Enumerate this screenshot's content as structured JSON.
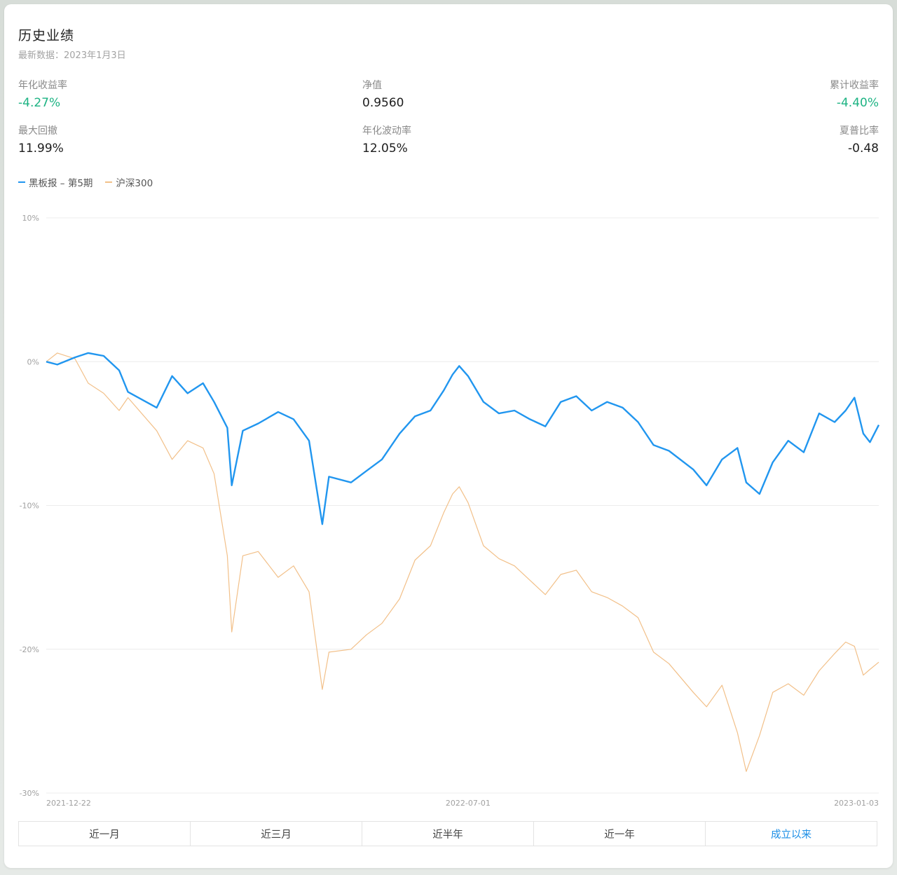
{
  "header": {
    "title": "历史业绩",
    "subtitle": "最新数据：2023年1月3日"
  },
  "metrics": [
    {
      "label": "年化收益率",
      "value": "-4.27%",
      "color": "#1db383"
    },
    {
      "label": "净值",
      "value": "0.9560",
      "color": "#1d1d1d"
    },
    {
      "label": "累计收益率",
      "value": "-4.40%",
      "color": "#1db383"
    },
    {
      "label": "最大回撤",
      "value": "11.99%",
      "color": "#1d1d1d"
    },
    {
      "label": "年化波动率",
      "value": "12.05%",
      "color": "#1d1d1d"
    },
    {
      "label": "夏普比率",
      "value": "-0.48",
      "color": "#1d1d1d"
    }
  ],
  "tabs": {
    "items": [
      "近一月",
      "近三月",
      "近半年",
      "近一年",
      "成立以来"
    ],
    "active_index": 4,
    "active_color": "#1d8fe6"
  },
  "chart_data": {
    "type": "line",
    "x_start": "2021-12-22",
    "x_end": "2023-01-03",
    "xticks": [
      "2021-12-22",
      "2022-07-01",
      "2023-01-03"
    ],
    "yticks": [
      "10%",
      "0%",
      "-10%",
      "-20%",
      "-30%"
    ],
    "ylim": [
      -30,
      10
    ],
    "grid": true,
    "legend_position": "top-left",
    "series": [
      {
        "name": "黑板报 – 第5期",
        "color": "#2196ef",
        "points": [
          [
            "2021-12-22",
            0.0
          ],
          [
            "2021-12-27",
            -0.2
          ],
          [
            "2022-01-04",
            0.3
          ],
          [
            "2022-01-10",
            0.6
          ],
          [
            "2022-01-17",
            0.4
          ],
          [
            "2022-01-24",
            -0.6
          ],
          [
            "2022-01-28",
            -2.1
          ],
          [
            "2022-02-10",
            -3.2
          ],
          [
            "2022-02-17",
            -1.0
          ],
          [
            "2022-02-24",
            -2.2
          ],
          [
            "2022-03-03",
            -1.5
          ],
          [
            "2022-03-08",
            -2.8
          ],
          [
            "2022-03-14",
            -4.6
          ],
          [
            "2022-03-16",
            -8.6
          ],
          [
            "2022-03-21",
            -4.8
          ],
          [
            "2022-03-28",
            -4.3
          ],
          [
            "2022-04-06",
            -3.5
          ],
          [
            "2022-04-13",
            -4.0
          ],
          [
            "2022-04-20",
            -5.5
          ],
          [
            "2022-04-26",
            -11.3
          ],
          [
            "2022-04-29",
            -8.0
          ],
          [
            "2022-05-09",
            -8.4
          ],
          [
            "2022-05-16",
            -7.6
          ],
          [
            "2022-05-23",
            -6.8
          ],
          [
            "2022-05-31",
            -5.0
          ],
          [
            "2022-06-07",
            -3.8
          ],
          [
            "2022-06-14",
            -3.4
          ],
          [
            "2022-06-20",
            -2.0
          ],
          [
            "2022-06-24",
            -0.9
          ],
          [
            "2022-06-27",
            -0.3
          ],
          [
            "2022-07-01",
            -1.0
          ],
          [
            "2022-07-08",
            -2.8
          ],
          [
            "2022-07-15",
            -3.6
          ],
          [
            "2022-07-22",
            -3.4
          ],
          [
            "2022-07-29",
            -4.0
          ],
          [
            "2022-08-05",
            -4.5
          ],
          [
            "2022-08-12",
            -2.8
          ],
          [
            "2022-08-19",
            -2.4
          ],
          [
            "2022-08-26",
            -3.4
          ],
          [
            "2022-09-02",
            -2.8
          ],
          [
            "2022-09-09",
            -3.2
          ],
          [
            "2022-09-16",
            -4.2
          ],
          [
            "2022-09-23",
            -5.8
          ],
          [
            "2022-09-30",
            -6.2
          ],
          [
            "2022-10-11",
            -7.5
          ],
          [
            "2022-10-17",
            -8.6
          ],
          [
            "2022-10-24",
            -6.8
          ],
          [
            "2022-10-31",
            -6.0
          ],
          [
            "2022-11-04",
            -8.4
          ],
          [
            "2022-11-10",
            -9.2
          ],
          [
            "2022-11-16",
            -7.0
          ],
          [
            "2022-11-23",
            -5.5
          ],
          [
            "2022-11-30",
            -6.3
          ],
          [
            "2022-12-07",
            -3.6
          ],
          [
            "2022-12-14",
            -4.2
          ],
          [
            "2022-12-19",
            -3.4
          ],
          [
            "2022-12-23",
            -2.5
          ],
          [
            "2022-12-27",
            -5.0
          ],
          [
            "2022-12-30",
            -5.6
          ],
          [
            "2023-01-03",
            -4.4
          ]
        ]
      },
      {
        "name": "沪深300",
        "color": "#f2c089",
        "points": [
          [
            "2021-12-22",
            0.0
          ],
          [
            "2021-12-27",
            0.6
          ],
          [
            "2022-01-04",
            0.2
          ],
          [
            "2022-01-10",
            -1.5
          ],
          [
            "2022-01-17",
            -2.2
          ],
          [
            "2022-01-24",
            -3.4
          ],
          [
            "2022-01-28",
            -2.5
          ],
          [
            "2022-02-10",
            -4.8
          ],
          [
            "2022-02-17",
            -6.8
          ],
          [
            "2022-02-24",
            -5.5
          ],
          [
            "2022-03-03",
            -6.0
          ],
          [
            "2022-03-08",
            -7.8
          ],
          [
            "2022-03-14",
            -13.5
          ],
          [
            "2022-03-16",
            -18.8
          ],
          [
            "2022-03-21",
            -13.5
          ],
          [
            "2022-03-28",
            -13.2
          ],
          [
            "2022-04-06",
            -15.0
          ],
          [
            "2022-04-13",
            -14.2
          ],
          [
            "2022-04-20",
            -16.0
          ],
          [
            "2022-04-26",
            -22.8
          ],
          [
            "2022-04-29",
            -20.2
          ],
          [
            "2022-05-09",
            -20.0
          ],
          [
            "2022-05-16",
            -19.0
          ],
          [
            "2022-05-23",
            -18.2
          ],
          [
            "2022-05-31",
            -16.5
          ],
          [
            "2022-06-07",
            -13.8
          ],
          [
            "2022-06-14",
            -12.8
          ],
          [
            "2022-06-20",
            -10.5
          ],
          [
            "2022-06-24",
            -9.2
          ],
          [
            "2022-06-27",
            -8.7
          ],
          [
            "2022-07-01",
            -9.8
          ],
          [
            "2022-07-08",
            -12.8
          ],
          [
            "2022-07-15",
            -13.7
          ],
          [
            "2022-07-22",
            -14.2
          ],
          [
            "2022-07-29",
            -15.2
          ],
          [
            "2022-08-05",
            -16.2
          ],
          [
            "2022-08-12",
            -14.8
          ],
          [
            "2022-08-19",
            -14.5
          ],
          [
            "2022-08-26",
            -16.0
          ],
          [
            "2022-09-02",
            -16.4
          ],
          [
            "2022-09-09",
            -17.0
          ],
          [
            "2022-09-16",
            -17.8
          ],
          [
            "2022-09-23",
            -20.2
          ],
          [
            "2022-09-30",
            -21.0
          ],
          [
            "2022-10-11",
            -23.0
          ],
          [
            "2022-10-17",
            -24.0
          ],
          [
            "2022-10-24",
            -22.5
          ],
          [
            "2022-10-31",
            -25.8
          ],
          [
            "2022-11-04",
            -28.5
          ],
          [
            "2022-11-10",
            -26.0
          ],
          [
            "2022-11-16",
            -23.0
          ],
          [
            "2022-11-23",
            -22.4
          ],
          [
            "2022-11-30",
            -23.2
          ],
          [
            "2022-12-07",
            -21.5
          ],
          [
            "2022-12-14",
            -20.3
          ],
          [
            "2022-12-19",
            -19.5
          ],
          [
            "2022-12-23",
            -19.8
          ],
          [
            "2022-12-27",
            -21.8
          ],
          [
            "2022-12-30",
            -21.4
          ],
          [
            "2023-01-03",
            -20.9
          ]
        ]
      }
    ]
  }
}
